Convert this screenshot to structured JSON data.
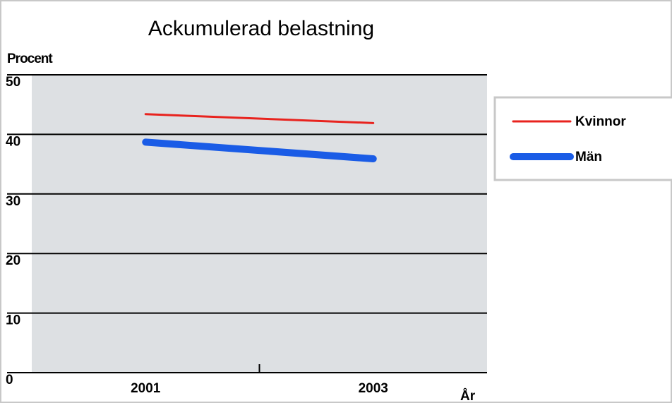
{
  "chart_data": {
    "type": "line",
    "title": "Ackumulerad belastning",
    "y_label": "Procent",
    "x_label": "År",
    "x": [
      2001,
      2003
    ],
    "xlim": [
      2000,
      2004
    ],
    "xticks": [
      2001,
      2003
    ],
    "xminor_ticks": [
      2002
    ],
    "ylim": [
      0,
      50
    ],
    "yticks": [
      0,
      10,
      20,
      30,
      40,
      50
    ],
    "grid": true,
    "series": [
      {
        "name": "Kvinnor",
        "color": "#e8231e",
        "width": 3,
        "values": [
          43.4,
          41.9
        ]
      },
      {
        "name": "Män",
        "color": "#1a5ce6",
        "width": 10,
        "values": [
          38.7,
          35.9
        ]
      }
    ],
    "legend": "right"
  }
}
